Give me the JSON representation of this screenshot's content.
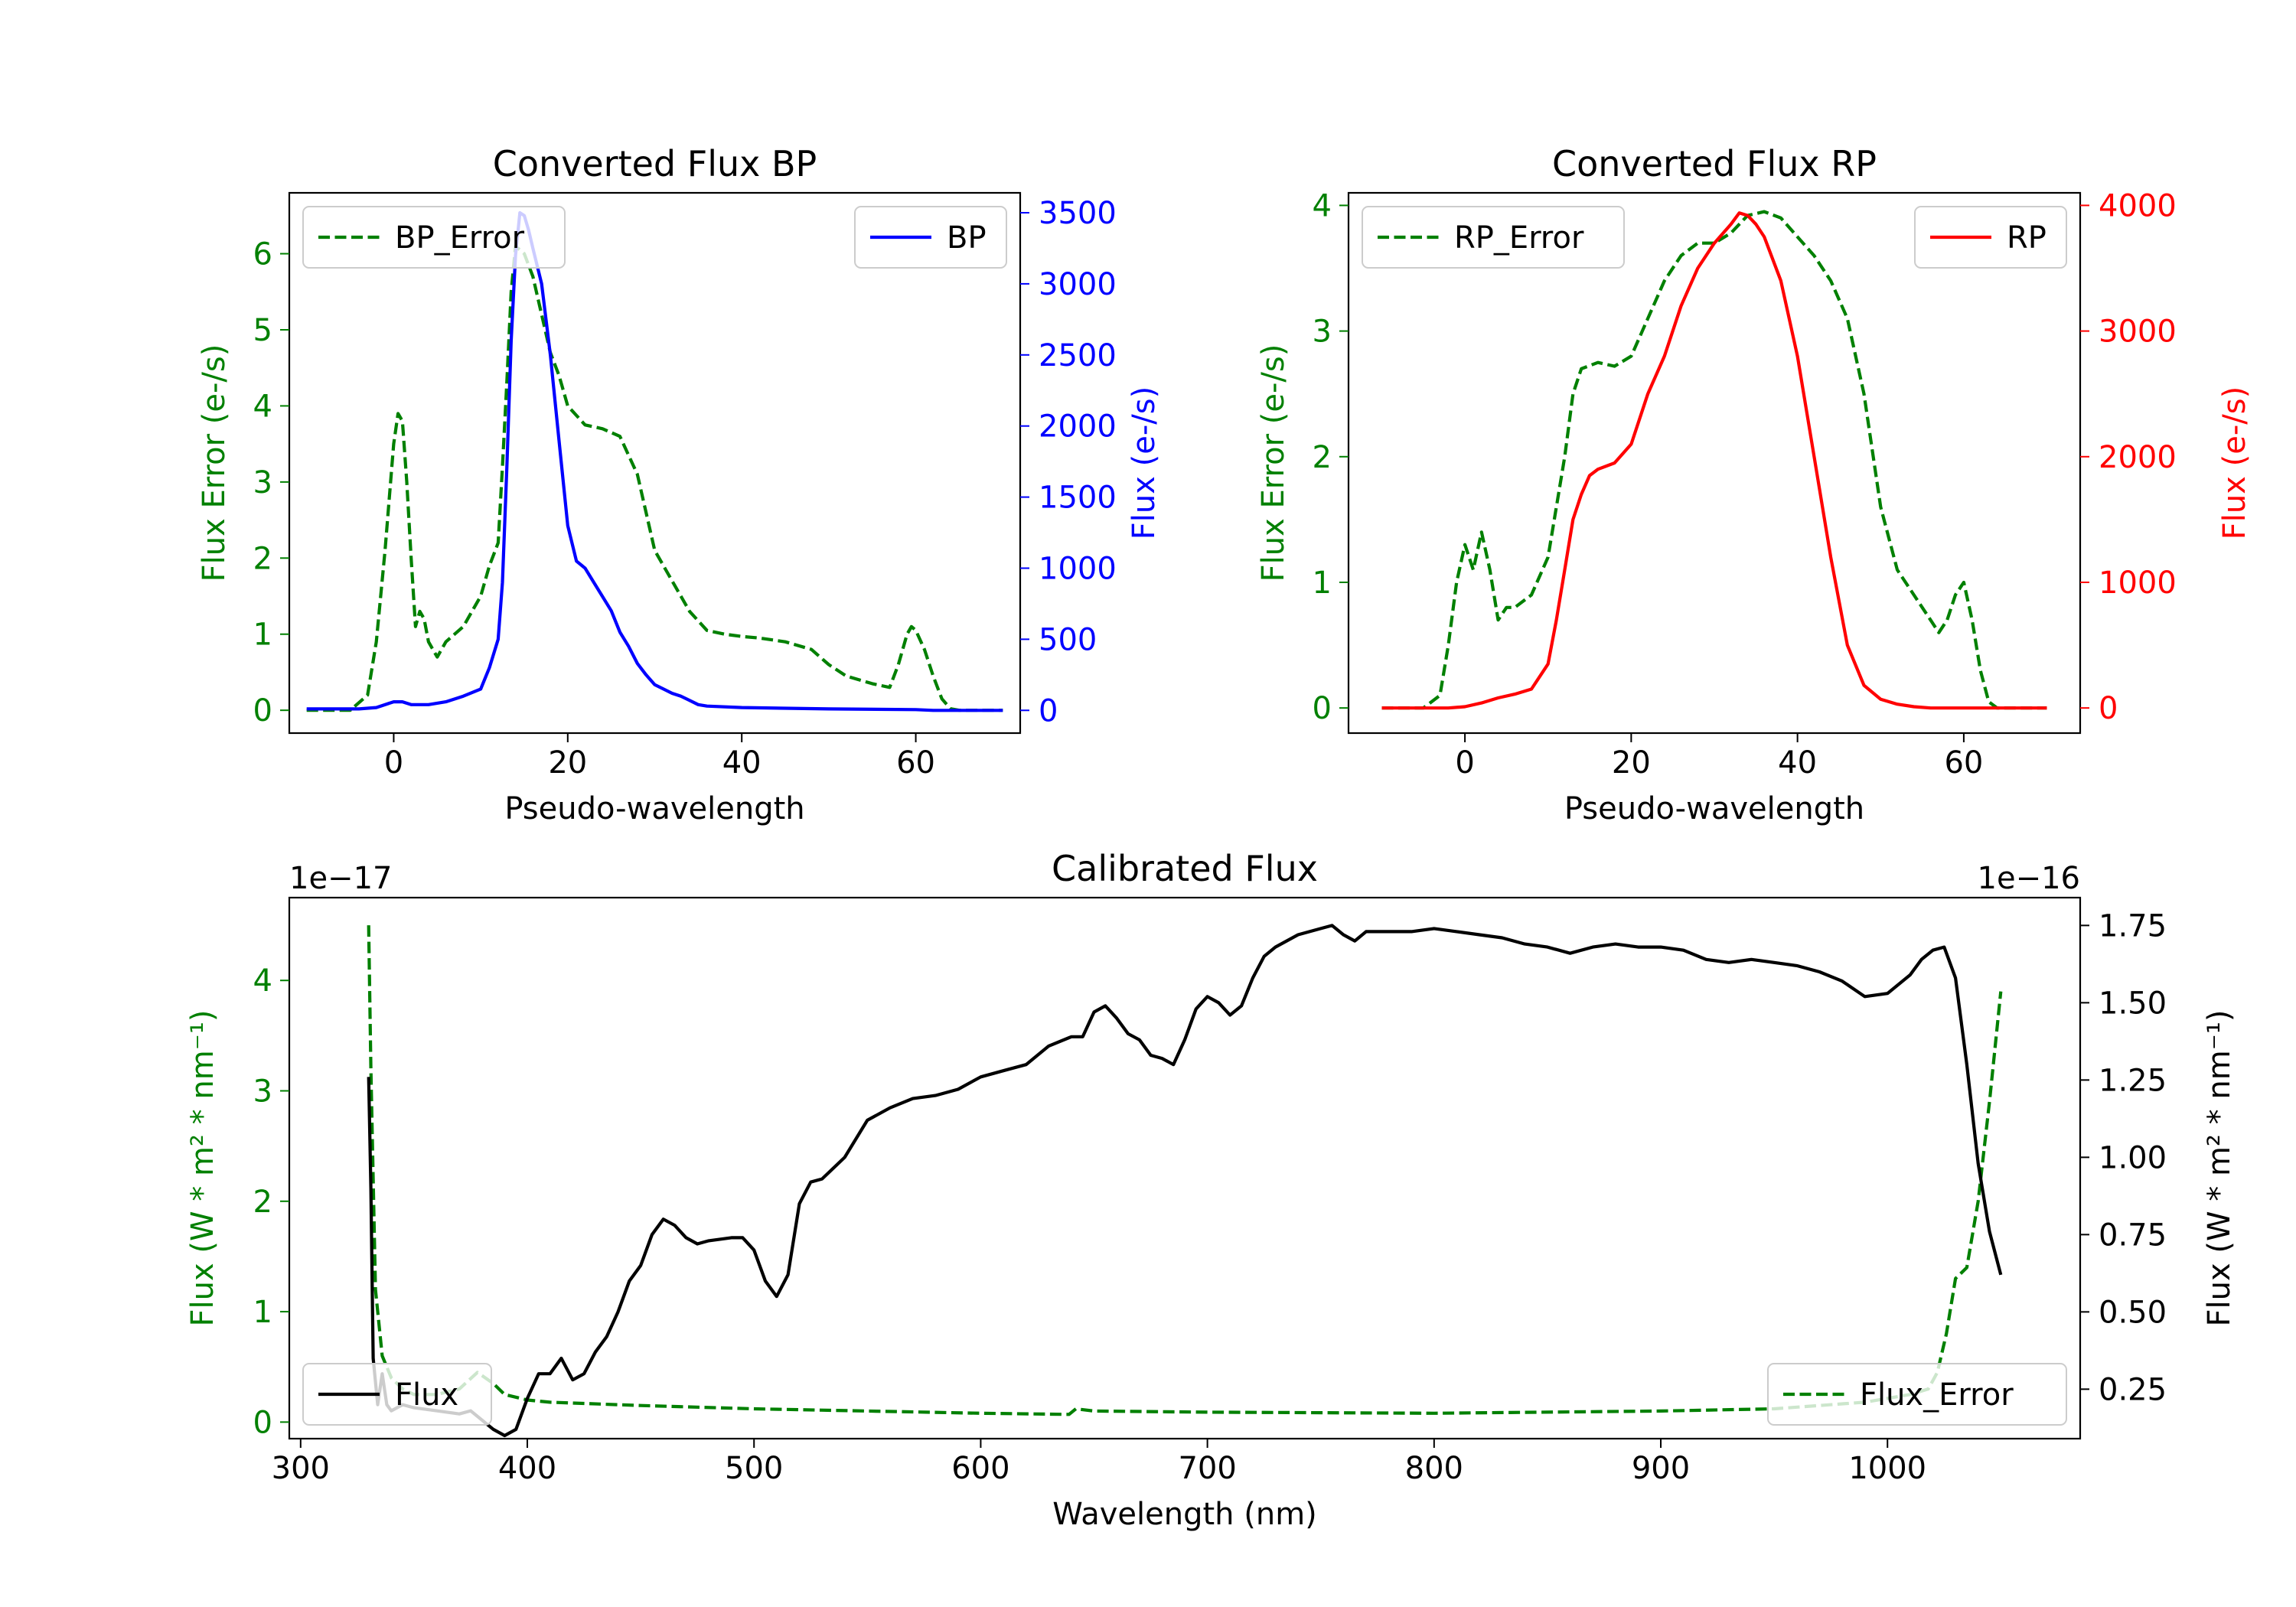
{
  "chart_data": [
    {
      "id": "bp",
      "type": "line",
      "title": "Converted Flux BP",
      "xlabel": "Pseudo-wavelength",
      "ylabel_left": "Flux Error (e-/s)",
      "ylabel_right": "Flux (e-/s)",
      "xlim": [
        -12,
        72
      ],
      "ylim_left": [
        -0.3,
        6.8
      ],
      "ylim_right": [
        -160,
        3640
      ],
      "xticks": [
        0,
        20,
        40,
        60
      ],
      "yticks_left": [
        0,
        1,
        2,
        3,
        4,
        5,
        6
      ],
      "yticks_right": [
        0,
        500,
        1000,
        1500,
        2000,
        2500,
        3000,
        3500
      ],
      "colors": {
        "error": "#008000",
        "flux": "#0000ff"
      },
      "legend_left": "BP_Error",
      "legend_right": "BP",
      "series": [
        {
          "name": "BP_Error",
          "axis": "left",
          "style": "dashed",
          "x": [
            -10,
            -5,
            -3,
            -2,
            -1,
            0,
            0.5,
            1,
            1.5,
            2,
            2.5,
            3,
            3.5,
            4,
            5,
            6,
            8,
            10,
            11,
            12,
            12.5,
            13,
            13.5,
            14,
            15,
            16,
            17,
            18,
            19,
            20,
            22,
            24,
            26,
            28,
            30,
            32,
            34,
            36,
            38,
            40,
            42,
            45,
            48,
            50,
            52,
            55,
            57,
            58,
            59,
            59.5,
            60,
            61,
            62,
            63,
            64,
            65,
            70
          ],
          "y": [
            0,
            0,
            0.2,
            0.9,
            2.1,
            3.5,
            3.9,
            3.8,
            3.0,
            2.0,
            1.1,
            1.3,
            1.2,
            0.9,
            0.7,
            0.9,
            1.1,
            1.5,
            1.9,
            2.2,
            3.2,
            4.3,
            5.5,
            6.1,
            6.0,
            5.7,
            5.2,
            4.7,
            4.4,
            4.0,
            3.75,
            3.7,
            3.6,
            3.1,
            2.1,
            1.7,
            1.3,
            1.05,
            1.0,
            0.97,
            0.95,
            0.9,
            0.8,
            0.6,
            0.45,
            0.35,
            0.3,
            0.6,
            1.0,
            1.1,
            1.05,
            0.8,
            0.45,
            0.15,
            0.02,
            0,
            0
          ]
        },
        {
          "name": "BP",
          "axis": "right",
          "style": "solid",
          "x": [
            -10,
            -4,
            -2,
            0,
            1,
            2,
            4,
            6,
            8,
            10,
            11,
            12,
            12.5,
            13,
            13.5,
            14,
            14.5,
            15,
            15.5,
            16,
            17,
            18,
            19,
            20,
            21,
            22,
            23,
            24,
            25,
            26,
            27,
            28,
            29,
            30,
            31,
            32,
            33,
            34,
            35,
            36,
            40,
            50,
            60,
            62,
            70
          ],
          "y": [
            10,
            10,
            20,
            60,
            60,
            40,
            40,
            60,
            100,
            150,
            300,
            500,
            900,
            1700,
            2600,
            3200,
            3500,
            3480,
            3380,
            3250,
            3000,
            2500,
            1900,
            1300,
            1050,
            1000,
            900,
            800,
            700,
            550,
            450,
            330,
            250,
            180,
            150,
            120,
            100,
            70,
            40,
            30,
            20,
            10,
            5,
            0,
            0
          ]
        }
      ]
    },
    {
      "id": "rp",
      "type": "line",
      "title": "Converted Flux RP",
      "xlabel": "Pseudo-wavelength",
      "ylabel_left": "Flux Error (e-/s)",
      "ylabel_right": "Flux (e-/s)",
      "xlim": [
        -14,
        74
      ],
      "ylim_left": [
        -0.2,
        4.1
      ],
      "ylim_right": [
        -200,
        4100
      ],
      "xticks": [
        0,
        20,
        40,
        60
      ],
      "yticks_left": [
        0,
        1,
        2,
        3,
        4
      ],
      "yticks_right": [
        0,
        1000,
        2000,
        3000,
        4000
      ],
      "colors": {
        "error": "#008000",
        "flux": "#ff0000"
      },
      "legend_left": "RP_Error",
      "legend_right": "RP",
      "series": [
        {
          "name": "RP_Error",
          "axis": "left",
          "style": "dashed",
          "x": [
            -10,
            -5,
            -3,
            -2,
            -1,
            0,
            1,
            2,
            3,
            4,
            5,
            6,
            8,
            10,
            12,
            13,
            14,
            16,
            18,
            20,
            22,
            24,
            26,
            28,
            30,
            32,
            34,
            36,
            38,
            40,
            42,
            44,
            46,
            48,
            50,
            52,
            54,
            56,
            57,
            58,
            59,
            60,
            61,
            62,
            63,
            64,
            70
          ],
          "y": [
            0,
            0,
            0.1,
            0.5,
            1.0,
            1.3,
            1.1,
            1.4,
            1.1,
            0.7,
            0.8,
            0.8,
            0.9,
            1.2,
            2.0,
            2.5,
            2.7,
            2.75,
            2.72,
            2.8,
            3.1,
            3.4,
            3.6,
            3.7,
            3.7,
            3.78,
            3.92,
            3.95,
            3.9,
            3.75,
            3.6,
            3.4,
            3.1,
            2.5,
            1.6,
            1.1,
            0.9,
            0.7,
            0.6,
            0.7,
            0.9,
            1.0,
            0.7,
            0.3,
            0.05,
            0,
            0
          ]
        },
        {
          "name": "RP",
          "axis": "right",
          "style": "solid",
          "x": [
            -10,
            -2,
            0,
            2,
            4,
            6,
            8,
            10,
            11,
            12,
            13,
            14,
            15,
            16,
            18,
            20,
            22,
            24,
            26,
            28,
            30,
            32,
            33,
            34,
            35,
            36,
            38,
            40,
            42,
            44,
            46,
            48,
            50,
            52,
            54,
            56,
            58,
            60,
            70
          ],
          "y": [
            0,
            0,
            10,
            40,
            80,
            110,
            150,
            350,
            700,
            1100,
            1500,
            1700,
            1850,
            1900,
            1950,
            2100,
            2500,
            2800,
            3200,
            3500,
            3700,
            3850,
            3940,
            3920,
            3850,
            3750,
            3400,
            2800,
            2000,
            1200,
            500,
            180,
            70,
            30,
            10,
            0,
            0,
            0,
            0
          ]
        }
      ]
    },
    {
      "id": "cal",
      "type": "line",
      "title": "Calibrated Flux",
      "xlabel": "Wavelength (nm)",
      "ylabel_left": "Flux (W * m² * nm⁻¹)",
      "ylabel_right": "Flux (W * m² * nm⁻¹)",
      "offset_left": "1e−17",
      "offset_right": "1e−16",
      "xlim": [
        295,
        1085
      ],
      "ylim_left": [
        -0.15,
        4.75
      ],
      "ylim_right": [
        0.09,
        1.84
      ],
      "xticks": [
        300,
        400,
        500,
        600,
        700,
        800,
        900,
        1000
      ],
      "yticks_left": [
        0,
        1,
        2,
        3,
        4
      ],
      "yticks_right": [
        0.25,
        0.5,
        0.75,
        1.0,
        1.25,
        1.5,
        1.75
      ],
      "yticklabels_right": [
        "0.25",
        "0.50",
        "0.75",
        "1.00",
        "1.25",
        "1.50",
        "1.75"
      ],
      "colors": {
        "error": "#008000",
        "flux": "#000000"
      },
      "legend_left": "Flux",
      "legend_right": "Flux_Error",
      "series": [
        {
          "name": "Flux_Error",
          "axis": "left",
          "style": "dashed",
          "x": [
            330,
            331,
            333,
            336,
            340,
            345,
            350,
            360,
            370,
            378,
            385,
            390,
            400,
            410,
            450,
            500,
            550,
            600,
            639,
            642,
            650,
            700,
            800,
            900,
            950,
            990,
            1010,
            1018,
            1022,
            1026,
            1030,
            1035,
            1040,
            1045,
            1050
          ],
          "y": [
            4.5,
            3.2,
            1.2,
            0.6,
            0.4,
            0.3,
            0.25,
            0.25,
            0.3,
            0.45,
            0.35,
            0.25,
            0.2,
            0.18,
            0.15,
            0.12,
            0.1,
            0.08,
            0.07,
            0.12,
            0.1,
            0.09,
            0.08,
            0.1,
            0.12,
            0.18,
            0.25,
            0.3,
            0.45,
            0.8,
            1.3,
            1.4,
            2.0,
            2.9,
            3.9
          ]
        },
        {
          "name": "Flux",
          "axis": "right",
          "style": "solid",
          "x": [
            330,
            331,
            332,
            334,
            336,
            338,
            340,
            345,
            350,
            360,
            370,
            375,
            380,
            385,
            390,
            395,
            400,
            405,
            410,
            415,
            420,
            425,
            430,
            435,
            440,
            445,
            450,
            455,
            460,
            465,
            470,
            475,
            480,
            490,
            495,
            500,
            505,
            510,
            515,
            520,
            525,
            530,
            540,
            550,
            560,
            570,
            580,
            590,
            600,
            610,
            620,
            630,
            640,
            645,
            650,
            655,
            660,
            665,
            670,
            675,
            680,
            685,
            690,
            695,
            700,
            705,
            710,
            715,
            720,
            725,
            730,
            740,
            750,
            755,
            760,
            765,
            770,
            780,
            790,
            800,
            810,
            820,
            830,
            840,
            850,
            860,
            870,
            880,
            890,
            900,
            910,
            920,
            930,
            940,
            950,
            960,
            970,
            980,
            990,
            1000,
            1010,
            1015,
            1020,
            1025,
            1030,
            1035,
            1040,
            1045,
            1050
          ],
          "y": [
            1.26,
            0.9,
            0.35,
            0.2,
            0.3,
            0.2,
            0.18,
            0.2,
            0.19,
            0.18,
            0.17,
            0.18,
            0.15,
            0.12,
            0.1,
            0.12,
            0.22,
            0.3,
            0.3,
            0.35,
            0.28,
            0.3,
            0.37,
            0.42,
            0.5,
            0.6,
            0.65,
            0.75,
            0.8,
            0.78,
            0.74,
            0.72,
            0.73,
            0.74,
            0.74,
            0.7,
            0.6,
            0.55,
            0.62,
            0.85,
            0.92,
            0.93,
            1.0,
            1.12,
            1.16,
            1.19,
            1.2,
            1.22,
            1.26,
            1.28,
            1.3,
            1.36,
            1.39,
            1.39,
            1.47,
            1.49,
            1.45,
            1.4,
            1.38,
            1.33,
            1.32,
            1.3,
            1.38,
            1.48,
            1.52,
            1.5,
            1.46,
            1.49,
            1.58,
            1.65,
            1.68,
            1.72,
            1.74,
            1.75,
            1.72,
            1.7,
            1.73,
            1.73,
            1.73,
            1.74,
            1.73,
            1.72,
            1.71,
            1.69,
            1.68,
            1.66,
            1.68,
            1.69,
            1.68,
            1.68,
            1.67,
            1.64,
            1.63,
            1.64,
            1.63,
            1.62,
            1.6,
            1.57,
            1.52,
            1.53,
            1.59,
            1.64,
            1.67,
            1.68,
            1.58,
            1.3,
            0.98,
            0.76,
            0.62
          ]
        }
      ]
    }
  ]
}
